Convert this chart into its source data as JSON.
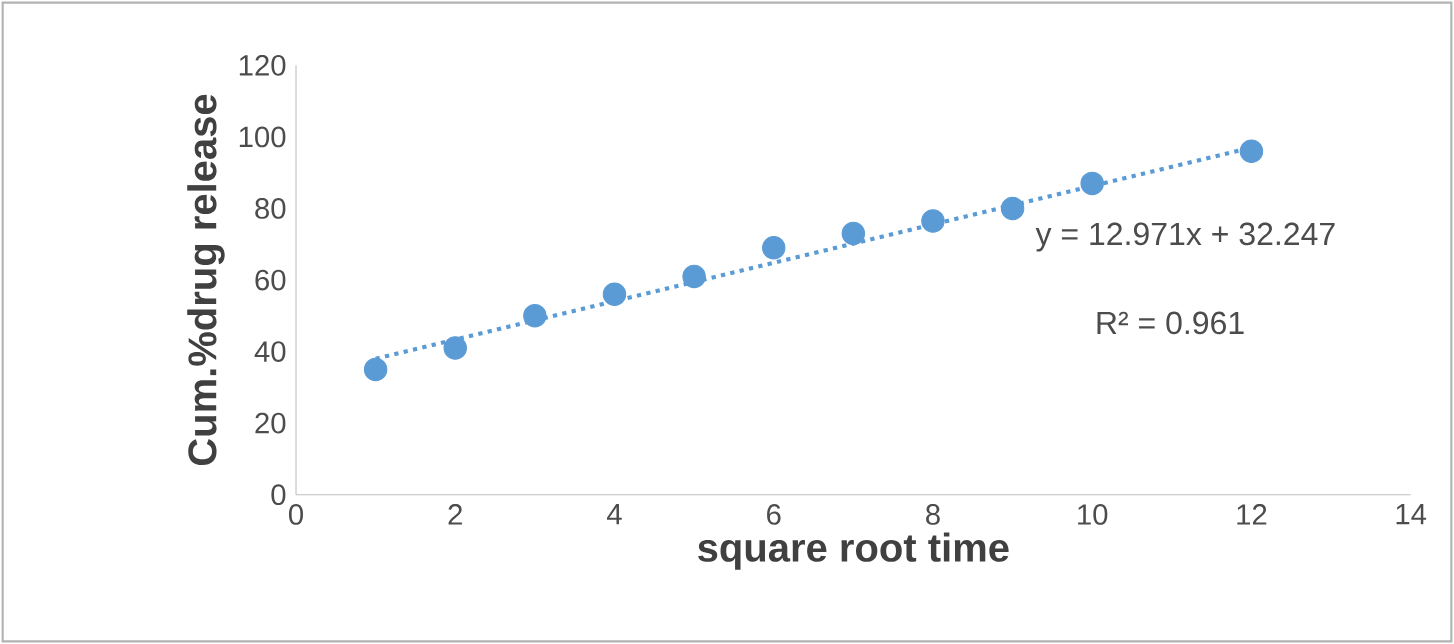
{
  "chart_data": {
    "type": "scatter",
    "xlabel": "square root time",
    "ylabel": "Cum.%drug release",
    "xlim": [
      0,
      14
    ],
    "xticks": [
      0,
      2,
      4,
      6,
      8,
      10,
      12,
      14
    ],
    "ylim": [
      0,
      120
    ],
    "yticks": [
      0,
      20,
      40,
      60,
      80,
      100,
      120
    ],
    "grid": false,
    "legend": false,
    "marker": "circle",
    "series": [
      {
        "color": "#5b9bd5",
        "x": [
          1,
          2,
          3,
          4,
          5,
          6,
          7,
          8,
          9,
          10,
          12
        ],
        "values": [
          35,
          41,
          50,
          56,
          61,
          69,
          73,
          76.5,
          80,
          87,
          96
        ]
      },
      {
        "type": "line",
        "color": "#5b9bd5",
        "line_style": "dotted",
        "marker": "none",
        "x": [
          1,
          12
        ],
        "values": [
          38,
          97
        ]
      }
    ],
    "annotations": [
      "y = 12.971x + 32.247",
      "R² = 0.961"
    ]
  }
}
